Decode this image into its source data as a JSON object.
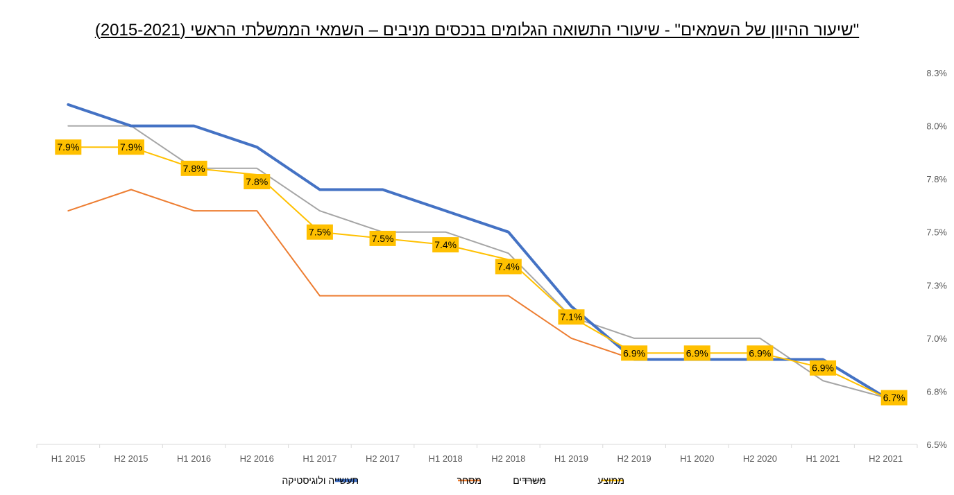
{
  "chart_data": {
    "type": "line",
    "title": "\"שיעור ההיוון של השמאים\" - שיעורי התשואה הגלומים בנכסים מניבים – השמאי הממשלתי הראשי (2015-2021)",
    "categories": [
      "H1 2015",
      "H2 2015",
      "H1 2016",
      "H2 2016",
      "H1 2017",
      "H2 2017",
      "H1 2018",
      "H2 2018",
      "H1 2019",
      "H2 2019",
      "H1 2020",
      "H2 2020",
      "H1 2021",
      "H2 2021"
    ],
    "ylim": [
      6.5,
      8.25
    ],
    "yticks": [
      "6.5%",
      "6.8%",
      "7.0%",
      "7.3%",
      "7.5%",
      "7.8%",
      "8.0%",
      "8.3%"
    ],
    "ytick_values": [
      6.5,
      6.75,
      7.0,
      7.25,
      7.5,
      7.75,
      8.0,
      8.25
    ],
    "y_axis_position": "right",
    "grid": false,
    "legend_position": "bottom",
    "series": [
      {
        "name": "תעשייה ולוגיסטיקה",
        "color": "#4472C4",
        "width": 4,
        "values": [
          8.1,
          8.0,
          8.0,
          7.9,
          7.7,
          7.7,
          7.6,
          7.5,
          7.15,
          6.9,
          6.9,
          6.9,
          6.9,
          6.72
        ]
      },
      {
        "name": "מסחר",
        "color": "#ED7D31",
        "width": 2,
        "values": [
          7.6,
          7.7,
          7.6,
          7.6,
          7.2,
          7.2,
          7.2,
          7.2,
          7.0,
          6.9,
          6.9,
          6.9,
          6.9,
          6.72
        ]
      },
      {
        "name": "משרדים",
        "color": "#A5A5A5",
        "width": 2,
        "values": [
          8.0,
          8.0,
          7.8,
          7.8,
          7.6,
          7.5,
          7.5,
          7.4,
          7.1,
          7.0,
          7.0,
          7.0,
          6.8,
          6.72
        ]
      },
      {
        "name": "ממוצע",
        "color": "#FFC000",
        "width": 2,
        "values": [
          7.9,
          7.9,
          7.8,
          7.77,
          7.5,
          7.47,
          7.44,
          7.37,
          7.1,
          6.93,
          6.93,
          6.93,
          6.86,
          6.72
        ],
        "data_labels": [
          "7.9%",
          "7.9%",
          "7.8%",
          "7.8%",
          "7.5%",
          "7.5%",
          "7.4%",
          "7.4%",
          "7.1%",
          "6.9%",
          "6.9%",
          "6.9%",
          "6.9%",
          "6.7%"
        ]
      }
    ]
  }
}
